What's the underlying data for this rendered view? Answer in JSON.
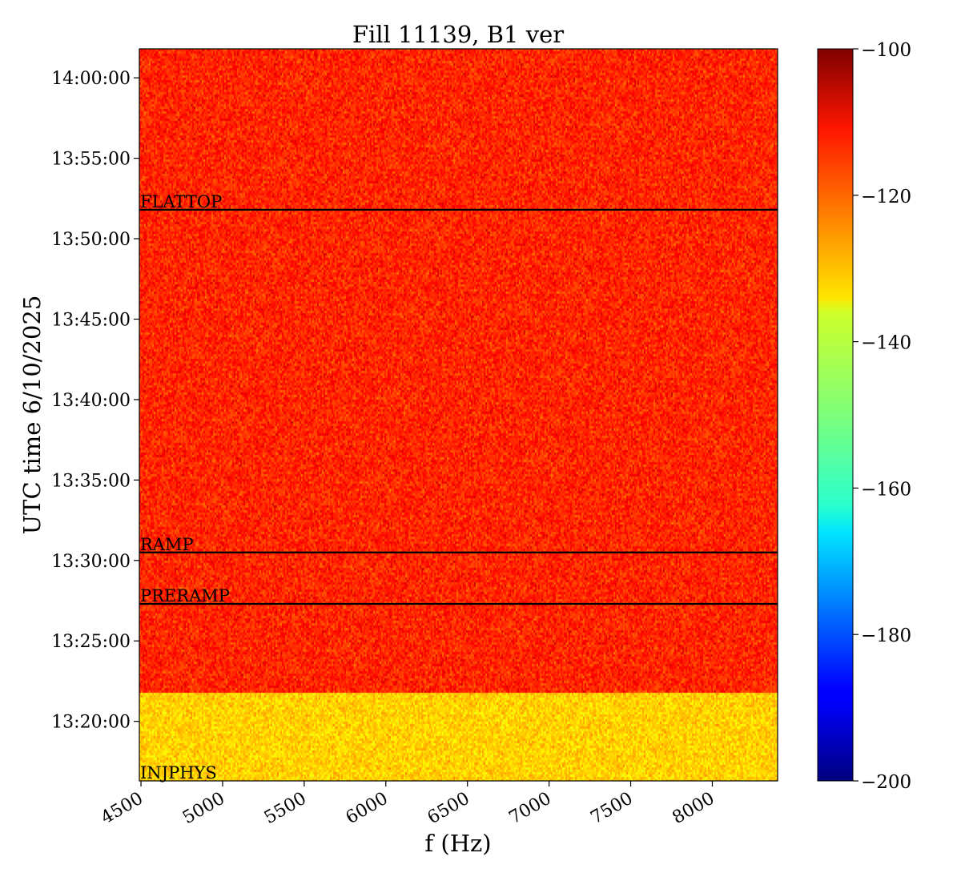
{
  "chart_data": {
    "type": "heatmap",
    "title": "Fill 11139, B1 ver",
    "xlabel": "f (Hz)",
    "ylabel": "UTC time 6/10/2025",
    "xlim": [
      4490,
      8400
    ],
    "x_ticks": [
      {
        "value": 4500,
        "label": "4500"
      },
      {
        "value": 5000,
        "label": "5000"
      },
      {
        "value": 5500,
        "label": "5500"
      },
      {
        "value": 6000,
        "label": "6000"
      },
      {
        "value": 6500,
        "label": "6500"
      },
      {
        "value": 7000,
        "label": "7000"
      },
      {
        "value": 7500,
        "label": "7500"
      },
      {
        "value": 8000,
        "label": "8000"
      }
    ],
    "ylim_minutes_since_13:00": [
      16.3,
      61.8
    ],
    "y_ticks": [
      {
        "minutes": 20,
        "label": "13:20:00"
      },
      {
        "minutes": 25,
        "label": "13:25:00"
      },
      {
        "minutes": 30,
        "label": "13:30:00"
      },
      {
        "minutes": 35,
        "label": "13:35:00"
      },
      {
        "minutes": 40,
        "label": "13:40:00"
      },
      {
        "minutes": 45,
        "label": "13:45:00"
      },
      {
        "minutes": 50,
        "label": "13:50:00"
      },
      {
        "minutes": 55,
        "label": "13:55:00"
      },
      {
        "minutes": 60,
        "label": "14:00:00"
      }
    ],
    "regions": [
      {
        "from_minutes": 16.3,
        "to_minutes": 21.9,
        "mean": -133,
        "spread": 3.5
      },
      {
        "from_minutes": 21.9,
        "to_minutes": 61.8,
        "mean": -116,
        "spread": 4
      }
    ],
    "phase_markers": [
      {
        "label": "INJPHYS",
        "minutes": 16.3
      },
      {
        "label": "PRERAMP",
        "minutes": 27.3
      },
      {
        "label": "RAMP",
        "minutes": 30.5
      },
      {
        "label": "FLATTOP",
        "minutes": 51.8
      }
    ],
    "colorbar": {
      "colormap": "jet",
      "min": -200,
      "max": -100,
      "ticks": [
        {
          "value": -100,
          "label": "−100"
        },
        {
          "value": -120,
          "label": "−120"
        },
        {
          "value": -140,
          "label": "−140"
        },
        {
          "value": -160,
          "label": "−160"
        },
        {
          "value": -180,
          "label": "−180"
        },
        {
          "value": -200,
          "label": "−200"
        }
      ]
    }
  }
}
